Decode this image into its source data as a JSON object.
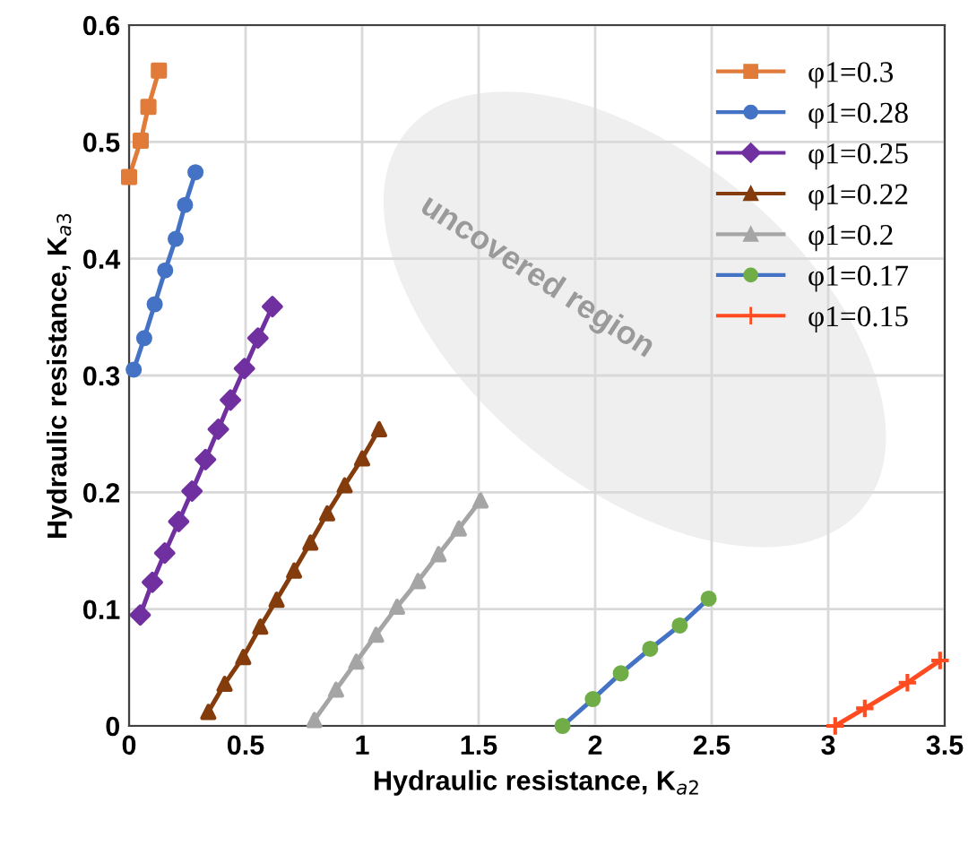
{
  "chart_data": {
    "type": "line",
    "xlabel": "Hydraulic resistance, K$_{a2}$",
    "ylabel": "Hydraulic resistance, K$_{a3}$",
    "xlim": [
      0,
      3.5
    ],
    "ylim": [
      0,
      0.6
    ],
    "xticks": [
      0,
      0.5,
      1,
      1.5,
      2,
      2.5,
      3,
      3.5
    ],
    "yticks": [
      0,
      0.1,
      0.2,
      0.3,
      0.4,
      0.5,
      0.6
    ],
    "grid": true,
    "legend": "top right",
    "annotations": [
      "uncovered region"
    ],
    "series": [
      {
        "name": "φ1=0.3",
        "color": "#e07b39",
        "marker": "square",
        "x": [
          0,
          0.05,
          0.083,
          0.128
        ],
        "values": [
          0.47,
          0.501,
          0.53,
          0.561
        ]
      },
      {
        "name": "φ1=0.28",
        "color": "#4472c4",
        "marker": "circle",
        "x": [
          0.02,
          0.065,
          0.11,
          0.155,
          0.2,
          0.24,
          0.285
        ],
        "values": [
          0.305,
          0.332,
          0.361,
          0.39,
          0.417,
          0.446,
          0.474
        ]
      },
      {
        "name": "φ1=0.25",
        "color": "#7030a0",
        "marker": "diamond",
        "x": [
          0.048,
          0.1,
          0.153,
          0.213,
          0.27,
          0.328,
          0.383,
          0.435,
          0.495,
          0.553,
          0.615
        ],
        "values": [
          0.095,
          0.123,
          0.148,
          0.175,
          0.201,
          0.228,
          0.254,
          0.279,
          0.306,
          0.332,
          0.359
        ]
      },
      {
        "name": "φ1=0.22",
        "color": "#843c0c",
        "marker": "triangle",
        "x": [
          0.34,
          0.41,
          0.49,
          0.563,
          0.633,
          0.708,
          0.778,
          0.85,
          0.925,
          1.0,
          1.073
        ],
        "values": [
          0.012,
          0.036,
          0.059,
          0.085,
          0.108,
          0.133,
          0.157,
          0.182,
          0.206,
          0.229,
          0.254
        ]
      },
      {
        "name": "φ1=0.2",
        "color": "#a5a5a5",
        "marker": "triangle",
        "x": [
          0.795,
          0.888,
          0.975,
          1.06,
          1.15,
          1.24,
          1.328,
          1.415,
          1.508
        ],
        "values": [
          0.005,
          0.031,
          0.055,
          0.078,
          0.102,
          0.124,
          0.147,
          0.169,
          0.193
        ]
      },
      {
        "name": "φ1=0.17",
        "color": "#4472c4",
        "colors": [
          "#70ad47",
          "#70ad47",
          "#70ad47",
          "#70ad47",
          "#70ad47",
          "#70ad47"
        ],
        "marker": "circle",
        "x": [
          1.86,
          1.99,
          2.11,
          2.236,
          2.363,
          2.487
        ],
        "values": [
          0,
          0.023,
          0.045,
          0.066,
          0.086,
          0.109
        ]
      },
      {
        "name": "φ1=0.15",
        "color": "#ff4b1f",
        "marker": "cross",
        "x": [
          3.03,
          3.157,
          3.34,
          3.48
        ],
        "values": [
          0,
          0.015,
          0.037,
          0.056
        ]
      }
    ]
  }
}
